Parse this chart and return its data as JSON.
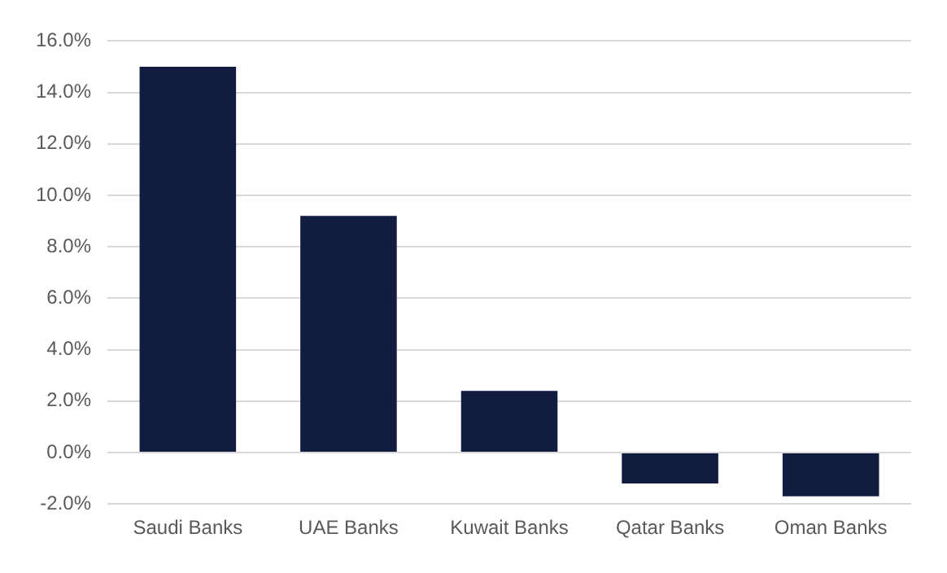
{
  "chart_data": {
    "type": "bar",
    "categories": [
      "Saudi Banks",
      "UAE Banks",
      "Kuwait Banks",
      "Qatar Banks",
      "Oman Banks"
    ],
    "values": [
      15.0,
      9.2,
      2.4,
      -1.2,
      -1.7
    ],
    "color": "#121b40",
    "ylim": [
      -2,
      16
    ],
    "yticks": [
      {
        "value": -2,
        "label": "-2.0%"
      },
      {
        "value": 0,
        "label": "0.0%"
      },
      {
        "value": 2,
        "label": "2.0%"
      },
      {
        "value": 4,
        "label": "4.0%"
      },
      {
        "value": 6,
        "label": "6.0%"
      },
      {
        "value": 8,
        "label": "8.0%"
      },
      {
        "value": 10,
        "label": "10.0%"
      },
      {
        "value": 12,
        "label": "12.0%"
      },
      {
        "value": 14,
        "label": "14.0%"
      },
      {
        "value": 16,
        "label": "16.0%"
      }
    ],
    "grid": "y",
    "legend": false
  }
}
